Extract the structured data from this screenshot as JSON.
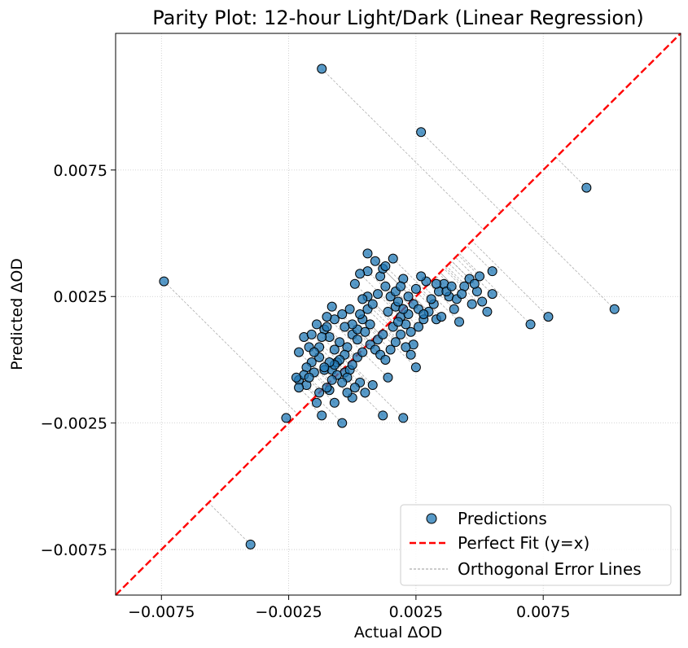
{
  "chart_data": {
    "type": "scatter",
    "title": "Parity Plot: 12-hour Light/Dark (Linear Regression)",
    "xlabel": "Actual ΔOD",
    "ylabel": "Predicted ΔOD",
    "xlim": [
      -0.0093,
      0.0129
    ],
    "ylim": [
      -0.0093,
      0.0129
    ],
    "xticks": [
      -0.0075,
      -0.0025,
      0.0025,
      0.0075
    ],
    "yticks": [
      -0.0075,
      -0.0025,
      0.0025,
      0.0075
    ],
    "xtick_labels": [
      "−0.0075",
      "−0.0025",
      "0.0025",
      "0.0075"
    ],
    "ytick_labels": [
      "−0.0075",
      "−0.0025",
      "0.0025",
      "0.0075"
    ],
    "grid": true,
    "legend_position": "bottom-right",
    "legend": [
      "Predictions",
      "Perfect Fit (y=x)",
      "Orthogonal Error Lines"
    ],
    "colors": {
      "points": "#1f77b4",
      "perfect_fit": "#ff0000",
      "error_lines": "#999999"
    },
    "identity_line": {
      "slope": 1,
      "intercept": 0
    },
    "points": [
      [
        -0.0074,
        0.0031
      ],
      [
        -0.004,
        -0.0073
      ],
      [
        -0.0026,
        -0.0023
      ],
      [
        -0.0021,
        0.0003
      ],
      [
        -0.0012,
        0.0115
      ],
      [
        0.0027,
        0.009
      ],
      [
        0.0092,
        0.0068
      ],
      [
        0.0103,
        0.002
      ],
      [
        0.007,
        0.0014
      ],
      [
        0.0077,
        0.0017
      ],
      [
        0.0055,
        0.0026
      ],
      [
        0.0055,
        0.0035
      ],
      [
        -0.0012,
        -0.0022
      ],
      [
        -0.0004,
        -0.0025
      ],
      [
        0.0012,
        -0.0022
      ],
      [
        0.002,
        -0.0023
      ],
      [
        0.0,
        -0.0015
      ],
      [
        -0.0009,
        -0.0012
      ],
      [
        -0.0018,
        -0.001
      ],
      [
        -0.0021,
        -0.0008
      ],
      [
        -0.0015,
        -0.0005
      ],
      [
        -0.0011,
        -0.0004
      ],
      [
        -0.0008,
        -0.0004
      ],
      [
        -0.0006,
        -0.0001
      ],
      [
        -0.0003,
        -0.0005
      ],
      [
        -0.0001,
        -0.0004
      ],
      [
        -0.0013,
        0.0001
      ],
      [
        -0.0017,
        0.0005
      ],
      [
        -0.0019,
        0.0009
      ],
      [
        -0.0016,
        0.001
      ],
      [
        -0.0014,
        0.0014
      ],
      [
        -0.0011,
        0.0012
      ],
      [
        -0.0009,
        0.0009
      ],
      [
        -0.0007,
        0.0004
      ],
      [
        -0.0005,
        0.0007
      ],
      [
        -0.0002,
        0.0005
      ],
      [
        0.0,
        0.001
      ],
      [
        0.0002,
        0.0012
      ],
      [
        0.0004,
        0.0016
      ],
      [
        0.0006,
        0.002
      ],
      [
        0.0008,
        0.0022
      ],
      [
        0.001,
        0.0026
      ],
      [
        0.0013,
        0.0029
      ],
      [
        0.0015,
        0.0025
      ],
      [
        0.0017,
        0.0021
      ],
      [
        0.0019,
        0.0017
      ],
      [
        0.0021,
        0.0014
      ],
      [
        0.0023,
        0.0011
      ],
      [
        0.0026,
        0.0013
      ],
      [
        0.0028,
        0.0016
      ],
      [
        0.003,
        0.0019
      ],
      [
        0.0032,
        0.0022
      ],
      [
        0.0034,
        0.0027
      ],
      [
        0.0036,
        0.003
      ],
      [
        0.0038,
        0.0025
      ],
      [
        0.004,
        0.002
      ],
      [
        0.0042,
        0.0015
      ],
      [
        0.0044,
        0.0029
      ],
      [
        0.0046,
        0.0032
      ],
      [
        0.0049,
        0.0027
      ],
      [
        0.0051,
        0.0023
      ],
      [
        0.0053,
        0.0019
      ],
      [
        0.0029,
        0.0031
      ],
      [
        0.0031,
        0.0024
      ],
      [
        0.0033,
        0.003
      ],
      [
        0.0037,
        0.0027
      ],
      [
        0.0041,
        0.0024
      ],
      [
        0.0047,
        0.0022
      ],
      [
        0.0024,
        0.0006
      ],
      [
        0.0022,
        0.0018
      ],
      [
        0.0018,
        0.0023
      ],
      [
        0.0014,
        0.0019
      ],
      [
        0.0011,
        0.0033
      ],
      [
        0.0009,
        0.0039
      ],
      [
        0.0006,
        0.0035
      ],
      [
        0.0003,
        0.0034
      ],
      [
        0.0001,
        0.003
      ],
      [
        0.0016,
        0.004
      ],
      [
        0.0012,
        0.0036
      ],
      [
        0.0025,
        0.0028
      ],
      [
        0.0027,
        0.0033
      ],
      [
        0.002,
        0.0032
      ],
      [
        0.0006,
        0.0025
      ],
      [
        0.0004,
        0.0024
      ],
      [
        -0.0001,
        0.002
      ],
      [
        -0.0004,
        0.0018
      ],
      [
        -0.0007,
        0.0016
      ],
      [
        -0.001,
        0.0013
      ],
      [
        -0.0012,
        0.0009
      ],
      [
        -0.0013,
        0.0005
      ],
      [
        -0.0015,
        0.0003
      ],
      [
        -0.0016,
        -0.0001
      ],
      [
        -0.0018,
        -0.0003
      ],
      [
        -0.0019,
        -0.0006
      ],
      [
        -0.0021,
        -0.0011
      ],
      [
        -0.0003,
        0.0002
      ],
      [
        -0.0005,
        0.0
      ],
      [
        -0.0007,
        -0.0002
      ],
      [
        -0.0009,
        -0.0001
      ],
      [
        -0.0011,
        -0.0003
      ],
      [
        -0.0002,
        -0.0007
      ],
      [
        0.0,
        -0.0002
      ],
      [
        0.0002,
        0.0001
      ],
      [
        0.0004,
        0.0003
      ],
      [
        0.0007,
        0.0006
      ],
      [
        0.0009,
        0.0004
      ],
      [
        0.0011,
        0.0002
      ],
      [
        0.0013,
        0.0
      ],
      [
        0.0015,
        0.0004
      ],
      [
        0.0017,
        0.0007
      ],
      [
        0.0019,
        0.001
      ],
      [
        0.0021,
        0.0005
      ],
      [
        0.0023,
        0.0002
      ],
      [
        0.0025,
        -0.0003
      ],
      [
        0.0014,
        -0.0007
      ],
      [
        0.0008,
        -0.001
      ],
      [
        0.0005,
        -0.0013
      ],
      [
        0.0003,
        -0.0009
      ],
      [
        0.0001,
        -0.0011
      ],
      [
        -0.0002,
        -0.0013
      ],
      [
        -0.0004,
        -0.0009
      ],
      [
        -0.0006,
        -0.0006
      ],
      [
        -0.0008,
        -0.0008
      ],
      [
        -0.001,
        -0.0011
      ],
      [
        -0.0013,
        -0.0013
      ],
      [
        -0.0017,
        -0.0007
      ],
      [
        -0.0022,
        -0.0007
      ],
      [
        -0.0014,
        -0.0017
      ],
      [
        -0.0007,
        -0.0017
      ],
      [
        0.0,
        0.0014
      ],
      [
        0.0002,
        0.0008
      ],
      [
        0.0005,
        0.0011
      ],
      [
        0.0007,
        0.0014
      ],
      [
        0.001,
        0.0008
      ],
      [
        0.0012,
        0.001
      ],
      [
        0.0016,
        0.0013
      ],
      [
        0.0018,
        0.0015
      ],
      [
        0.002,
        0.002
      ],
      [
        0.0022,
        0.0025
      ],
      [
        0.0024,
        0.0022
      ],
      [
        0.0026,
        0.002
      ],
      [
        0.0028,
        0.0018
      ],
      [
        0.0033,
        0.0016
      ],
      [
        0.0035,
        0.0017
      ],
      [
        0.0039,
        0.0029
      ],
      [
        0.0043,
        0.0026
      ],
      [
        0.0048,
        0.003
      ],
      [
        0.005,
        0.0033
      ],
      [
        0.0006,
        0.0042
      ],
      [
        0.0013,
        0.0037
      ],
      [
        -0.0008,
        0.0021
      ],
      [
        -0.001,
        0.0017
      ],
      [
        0.0003,
        0.0018
      ],
      [
        -0.0003,
        0.0013
      ],
      [
        0.0017,
        0.0027
      ],
      [
        0.0019,
        0.0029
      ]
    ]
  }
}
